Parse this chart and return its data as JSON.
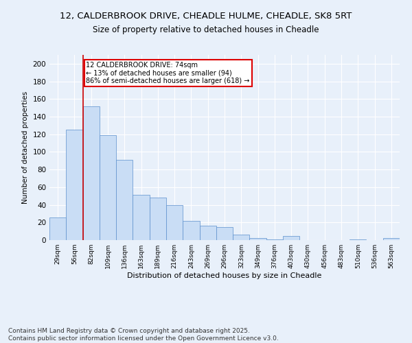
{
  "title_line1": "12, CALDERBROOK DRIVE, CHEADLE HULME, CHEADLE, SK8 5RT",
  "title_line2": "Size of property relative to detached houses in Cheadle",
  "xlabel": "Distribution of detached houses by size in Cheadle",
  "ylabel": "Number of detached properties",
  "categories": [
    "29sqm",
    "56sqm",
    "82sqm",
    "109sqm",
    "136sqm",
    "163sqm",
    "189sqm",
    "216sqm",
    "243sqm",
    "269sqm",
    "296sqm",
    "323sqm",
    "349sqm",
    "376sqm",
    "403sqm",
    "430sqm",
    "456sqm",
    "483sqm",
    "510sqm",
    "536sqm",
    "563sqm"
  ],
  "values": [
    26,
    125,
    152,
    119,
    91,
    51,
    48,
    40,
    22,
    16,
    15,
    6,
    2,
    1,
    5,
    0,
    0,
    0,
    1,
    0,
    2
  ],
  "bar_color": "#c9ddf5",
  "bar_edge_color": "#5b8fcc",
  "annotation_lines": [
    "12 CALDERBROOK DRIVE: 74sqm",
    "← 13% of detached houses are smaller (94)",
    "86% of semi-detached houses are larger (618) →"
  ],
  "annotation_box_color": "#ffffff",
  "annotation_box_edge": "#dd0000",
  "ylim": [
    0,
    210
  ],
  "yticks": [
    0,
    20,
    40,
    60,
    80,
    100,
    120,
    140,
    160,
    180,
    200
  ],
  "footer_line1": "Contains HM Land Registry data © Crown copyright and database right 2025.",
  "footer_line2": "Contains public sector information licensed under the Open Government Licence v3.0.",
  "bg_color": "#e8f0fa",
  "plot_bg_color": "#e8f0fa",
  "grid_color": "#ffffff",
  "title_fontsize": 9.5,
  "subtitle_fontsize": 8.5,
  "footer_fontsize": 6.5
}
